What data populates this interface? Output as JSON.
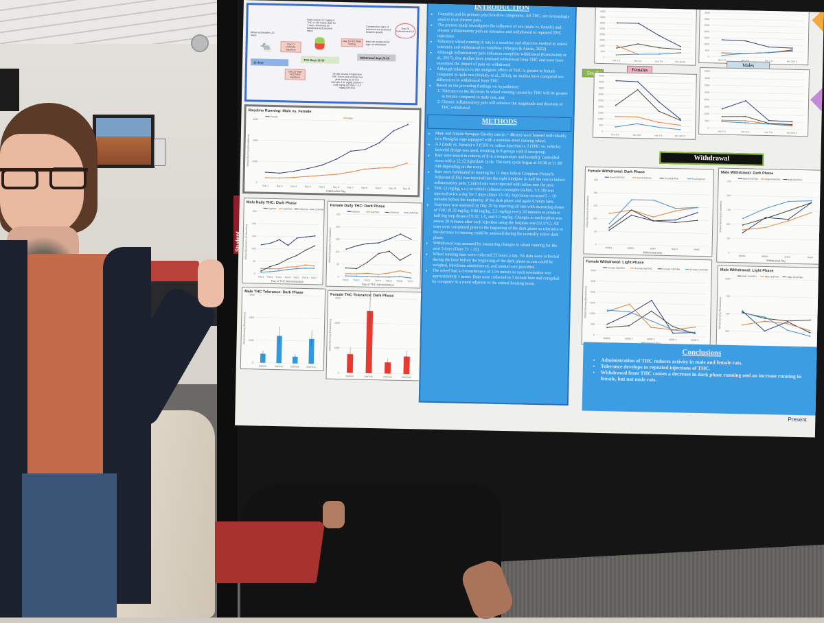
{
  "colors": {
    "intro_blue": "#3c9de3",
    "navy": "#2f3d7a",
    "orange": "#e8803a",
    "darkgreen": "#3f4a3a",
    "lightblue": "#4a8fd0",
    "bar_blue": "#3399dd",
    "bar_red": "#e83a30"
  },
  "sign": {
    "text": "Student"
  },
  "flowchart": {
    "acclimation": "Wheel acclimation (13 days)",
    "day11": "Day 11 CFA/SAL injections",
    "day13": "Day 13 Start THC/VEH injections",
    "days13": "13 days",
    "thc_days": "THC Days 13-19",
    "thc_note": "Rats receive 3.2 mg/kg of THC or VEH twice daily for 7 days. Monitored for behavioral and physical effect",
    "day19": "Day 19 Hot Plate testing",
    "hotplate_note": "All rats receive Progressive THC Doses and undergo hot plate testing at 20 min intervals 0.32 mg/kg (20min) + 0.68 mg/kg (20 min) + 2.2 mg/kg (20 min)",
    "withdrawal_days": "Withdrawal days 20-25",
    "compare_note": "Comparative signs of tolerance are assessed between groups",
    "monitor_note": "Rats are monitored for signs of withdrawal",
    "day26": "Day 26 Euthanasia & LP"
  },
  "introduction": {
    "title": "INTRODUCTION",
    "bullets": [
      "Cannabis and its primary psychoactive component, Δ9-THC, are increasingly used to treat chronic pain.",
      "The present study investigates the influence of sex (male vs. female) and chronic inflammatory pain on tolerance and withdrawal to repeated THC injections",
      "Voluntary wheel running in rats is a sensitive and objective method to assess tolerance and withdrawal to morphine (Morgan & Ataras, 2022)",
      "Although inflammatory pain enhances morphine withdrawal (Kandasamy et al., 2017), few studies have assessed withdrawal from THC and none have examined the impact of pain on withdrawal",
      "Although tolerance to the analgesic effect of THC is greater in female compared to male rats (Wakley et al., 2014), no studies have compared sex differences in withdrawal from THC",
      "Based on the preceding findings we hypothesize:"
    ],
    "hypotheses": [
      "Tolerance to the decrease in wheel running caused by THC will be greater in female compared to male rats, and",
      "Chronic inflammatory pain will enhance the magnitude and duration of THC withdrawal"
    ]
  },
  "methods": {
    "title": "METHODS",
    "bullets": [
      "Male and female Sprague-Dawley rats (n = 48/sex) were housed individually in a Plexiglas cage equipped with a stainless-steel running wheel.",
      "A 2 (male vs. female) x 2 (CFA vs. saline injection) x 2 (THC vs. vehicle) factorial design was used, resulting in 8 groups with 8 rats/group.",
      "Rats were tested in cohorts of 8 in a temperature and humidity controlled room with a 12:12 light/dark cycle. The dark cycle began at 10:30 or 11:00 AM depending on the room.",
      "Rats were habituated to running for 11 days before Complete Freund's Adjuvant (CFA) was injected into the right hindpaw in half the rats to induce inflammatory pain. Control rats were injected with saline into the paw.",
      "THC (3 mg/kg, s.c.) or vehicle (ethanol:cremophor:saline, 1:1:18) was injected twice a day for 7 days (Days 13-19). Injections occurred 5 – 10 minutes before the beginning of the dark phase and again 6 hours later.",
      "Tolerance was assessed on Day 20 by injecting all rats with increasing doses of THC (0.32 mg/kg, 0.68 mg/kg, 2.2 mg/kg) every 20 minutes to produce half-log step doses of 0.32, 1.0, and 3.2 mg/kg. Changes in nociception was assess 20 minutes after each injection using the hotplate test (52.5°C). All tests were completed prior to the beginning of the dark phase so tolerance to the decrease in running could be assessed during the normally active dark phase.",
      "Withdrawal was assessed by measuring changes in wheel running for the next 5 days (Days 21 – 25).",
      "Wheel running data were collected 23 hours a day. No data were collected during the hour before the beginning of the dark phase so rats could be weighed, injections administered, and animal care provided.",
      "The wheel had a circumference of 1.04 meters so each revolution was approximately 1 meter. Data were collected in 5 minute bins and compiled by computer in a room adjacent to the animal housing room."
    ]
  },
  "labels": {
    "day7": "Day 7",
    "females": "Females",
    "males": "Males",
    "withdrawal": "Withdrawal",
    "presented": "Present"
  },
  "conclusions": {
    "title": "Conclusions",
    "bullets": [
      "Administration of THC reduces activity in male and female rats.",
      "Tolerance develops to repeated injections of THC.",
      "Withdrawal from THC causes a decrease in dark phase running and an increase running in female, but not male rats."
    ]
  },
  "chart_data": [
    {
      "type": "line",
      "title": "Baseline Running: Male vs. Female",
      "xlabel": "Habituation Day",
      "ylabel": "Wheel Running (Revolutions)",
      "ylim": [
        0,
        6000
      ],
      "yticks": [
        0,
        2000,
        4000,
        6000
      ],
      "categories": [
        "Day 1",
        "Day 2",
        "Day 3",
        "Day 4",
        "Day 5",
        "Day 6",
        "Day 7",
        "Day 8",
        "Day 9",
        "Day 10",
        "Day 11"
      ],
      "series": [
        {
          "name": "Female",
          "color": "#2f3d7a",
          "values": [
            960,
            900,
            1110,
            1400,
            1760,
            2350,
            3130,
            3310,
            3980,
            5150,
            5770
          ]
        },
        {
          "name": "Male",
          "color": "#e8803a",
          "values": [
            440,
            440,
            520,
            650,
            780,
            900,
            1140,
            1450,
            1580,
            1680,
            2100
          ]
        }
      ]
    },
    {
      "type": "line",
      "title": "Male Daily THC: Dark Phase",
      "xlabel": "Day of THC Administration",
      "ylabel": "Wheel Revolutions (% Baseline)",
      "ylim": [
        0,
        250
      ],
      "yticks": [
        0,
        50,
        100,
        150,
        200,
        250
      ],
      "categories": [
        "THC1",
        "THC2",
        "THC3",
        "THC4",
        "THC5",
        "THC6",
        "THC7"
      ],
      "series": [
        {
          "name": "Sal/Veh",
          "color": "#2f3d7a",
          "values": [
            115,
            122,
            137,
            115,
            145,
            150,
            155
          ]
        },
        {
          "name": "Sal/THC",
          "color": "#e8803a",
          "values": [
            20,
            20,
            20,
            28,
            30,
            38,
            35
          ]
        },
        {
          "name": "CFA/Veh",
          "color": "#3f4a3a",
          "values": [
            10,
            28,
            40,
            60,
            75,
            97,
            115
          ]
        },
        {
          "name": "CFA/THC",
          "color": "#4a8fd0",
          "values": [
            5,
            8,
            12,
            18,
            22,
            25,
            25
          ]
        }
      ]
    },
    {
      "type": "line",
      "title": "Female Daily THC: Dark Phase",
      "xlabel": "Day of THC Administration",
      "ylabel": "Wheel Revolutions (% Baseline)",
      "ylim": [
        0,
        250
      ],
      "yticks": [
        0,
        50,
        100,
        150,
        200,
        250
      ],
      "categories": [
        "THC1",
        "THC2",
        "THC3",
        "THC4",
        "THC5",
        "THC6",
        "THC7"
      ],
      "series": [
        {
          "name": "Sal/Veh",
          "color": "#2f3d7a",
          "values": [
            110,
            125,
            135,
            138,
            155,
            175,
            155
          ]
        },
        {
          "name": "Sal/THC",
          "color": "#e8803a",
          "values": [
            12,
            12,
            15,
            12,
            18,
            28,
            20
          ]
        },
        {
          "name": "CFA/Veh",
          "color": "#3f4a3a",
          "values": [
            35,
            33,
            60,
            95,
            105,
            70,
            95
          ]
        },
        {
          "name": "CFA/THC",
          "color": "#4a8fd0",
          "values": [
            3,
            3,
            2,
            2,
            2,
            5,
            0
          ]
        }
      ]
    },
    {
      "type": "bar",
      "title": "Male THC Tolerance: Dark Phase",
      "ylabel": "Wheel Running (Revolutions)",
      "ylim": [
        0,
        3000
      ],
      "yticks": [
        0,
        1000,
        2000,
        3000
      ],
      "categories": [
        "Sal/Veh",
        "Sal/THC",
        "CFA/Veh",
        "CFA/THC"
      ],
      "color": "#3399dd",
      "values": [
        400,
        1200,
        300,
        1100
      ]
    },
    {
      "type": "bar",
      "title": "Female THC Tolerance: Dark Phase",
      "ylabel": "Wheel Running (Revolutions)",
      "ylim": [
        0,
        3000
      ],
      "yticks": [
        0,
        1000,
        2000,
        3000
      ],
      "categories": [
        "Sal/Veh",
        "Sal/THC",
        "CFA/Veh",
        "CFA/THC"
      ],
      "color": "#e83a30",
      "values": [
        750,
        2500,
        450,
        700
      ]
    },
    {
      "type": "line",
      "title": "",
      "ylim": [
        0,
        4500
      ],
      "yticks": [
        0,
        500,
        1000,
        1500,
        2000,
        2500,
        3000,
        3500,
        4000,
        4500
      ],
      "categories": [
        "Hrs 1-3",
        "Hrs 4-6",
        "Hrs 7-9",
        "Hrs 10-12"
      ],
      "series": [
        {
          "color": "#2f3d7a",
          "values": [
            3000,
            3000,
            1950,
            1050
          ]
        },
        {
          "color": "#3f4a3a",
          "values": [
            800,
            1200,
            900,
            800
          ]
        },
        {
          "color": "#e8803a",
          "values": [
            1000,
            300,
            350,
            500
          ]
        },
        {
          "color": "#4a8fd0",
          "values": [
            200,
            300,
            350,
            500
          ]
        }
      ]
    },
    {
      "type": "line",
      "title": "",
      "ylim": [
        0,
        4000
      ],
      "yticks": [
        0,
        500,
        1000,
        1500,
        2000,
        2500,
        3000,
        3500,
        4000
      ],
      "categories": [
        "Hrs 1-3",
        "Hrs 4-6",
        "Hrs 7-9",
        "Hrs 10-12"
      ],
      "series": [
        {
          "color": "#2f3d7a",
          "values": [
            1350,
            1300,
            850,
            800
          ]
        },
        {
          "color": "#3f4a3a",
          "values": [
            300,
            300,
            400,
            650
          ]
        },
        {
          "color": "#e8803a",
          "values": [
            300,
            300,
            400,
            600
          ]
        },
        {
          "color": "#4a8fd0",
          "values": [
            100,
            300,
            400,
            550
          ]
        }
      ]
    },
    {
      "type": "line",
      "title": "",
      "ylim": [
        0,
        4500
      ],
      "yticks": [
        0,
        500,
        1000,
        1500,
        2000,
        2500,
        3000,
        3500,
        4000,
        4500
      ],
      "categories": [
        "Hrs 1-3",
        "Hrs 4-6",
        "Hrs 7-9",
        "Hrs 10-12"
      ],
      "series": [
        {
          "color": "#2f3d7a",
          "values": [
            4100,
            4050,
            2450,
            1100
          ]
        },
        {
          "color": "#3f4a3a",
          "values": [
            2100,
            3400,
            1700,
            1000
          ]
        },
        {
          "color": "#e8803a",
          "values": [
            1200,
            1200,
            800,
            600
          ]
        },
        {
          "color": "#4a8fd0",
          "values": [
            350,
            650,
            400,
            250
          ]
        }
      ]
    },
    {
      "type": "line",
      "title": "",
      "ylim": [
        0,
        4000
      ],
      "yticks": [
        0,
        500,
        1000,
        1500,
        2000,
        2500,
        3000,
        3500,
        4000
      ],
      "categories": [
        "Hrs 1-3",
        "Hrs 4-6",
        "Hrs 7-9",
        "Hrs 10-12"
      ],
      "series": [
        {
          "color": "#2f3d7a",
          "values": [
            1350,
            1950,
            600,
            550
          ]
        },
        {
          "color": "#3f4a3a",
          "values": [
            800,
            850,
            400,
            350
          ]
        },
        {
          "color": "#e8803a",
          "values": [
            550,
            550,
            350,
            300
          ]
        },
        {
          "color": "#4a8fd0",
          "values": [
            450,
            400,
            350,
            250
          ]
        }
      ]
    },
    {
      "type": "line",
      "title": "Female Withdrawal: Dark Phase",
      "xlabel": "Withdrawal Day",
      "ylabel": "Wheel Running (% Baseline)",
      "ylim": [
        0,
        250
      ],
      "yticks": [
        0,
        50,
        100,
        150,
        200,
        250
      ],
      "categories": [
        "WDR1",
        "WDR2",
        "Wdr3",
        "Wdr 4",
        "Wdr5"
      ],
      "series": [
        {
          "name": "Fem/CFA/THC",
          "color": "#2f3d7a",
          "values": [
            55,
            115,
            95,
            100,
            130
          ]
        },
        {
          "name": "Fem/CFA/Veh",
          "color": "#e8803a",
          "values": [
            120,
            135,
            110,
            135,
            150
          ]
        },
        {
          "name": "Fem/Sal/THC",
          "color": "#3f4a3a",
          "values": [
            65,
            135,
            95,
            90,
            100
          ]
        },
        {
          "name": "Fem/Sal/Veh",
          "color": "#4a8fd0",
          "values": [
            80,
            175,
            175,
            145,
            150
          ]
        }
      ]
    },
    {
      "type": "line",
      "title": "Male Withdrawal: Dark Phase",
      "xlabel": "Withdrawal Day",
      "ylabel": "Wheel Running (% Baseline)",
      "ylim": [
        0,
        250
      ],
      "yticks": [
        0,
        50,
        100,
        150,
        200,
        250
      ],
      "categories": [
        "WDR1",
        "WDR2",
        "Wdr3",
        "Wdr4"
      ],
      "series": [
        {
          "name": "Male/CFA/THC",
          "color": "#2f3d7a",
          "values": [
            70,
            125,
            120,
            180
          ]
        },
        {
          "name": "Male/CFA/Veh",
          "color": "#e8803a",
          "values": [
            80,
            90,
            115,
            145
          ]
        },
        {
          "name": "Male/Sal/THC",
          "color": "#3f4a3a",
          "values": [
            97,
            122,
            150,
            180
          ]
        },
        {
          "color": "#4a8fd0",
          "values": [
            120,
            157,
            183,
            187
          ]
        }
      ]
    },
    {
      "type": "line",
      "title": "Female Withdrawal: Light Phase",
      "xlabel": "Withdrawal Day",
      "ylabel": "Wheel Running (Revolutions)",
      "ylim": [
        0,
        3000
      ],
      "yticks": [
        0,
        500,
        1000,
        1500,
        2000,
        2500,
        3000
      ],
      "categories": [
        "WDR1",
        "WDR 2",
        "WDR 3",
        "WDR 4",
        "WDR 5"
      ],
      "series": [
        {
          "name": "Female Sal/VEH",
          "color": "#2f3d7a",
          "values": [
            500,
            1000,
            1650,
            150,
            200
          ]
        },
        {
          "name": "Female Sal/THC",
          "color": "#e8803a",
          "values": [
            1100,
            1450,
            400,
            300,
            450
          ]
        },
        {
          "name": "Female Cfa/VEH",
          "color": "#3f4a3a",
          "values": [
            350,
            450,
            1150,
            450,
            150
          ]
        },
        {
          "name": "Female CFA/THC",
          "color": "#4a8fd0",
          "values": [
            1150,
            1100,
            700,
            300,
            200
          ]
        }
      ]
    },
    {
      "type": "line",
      "title": "Male Withdrawal: Light Phase",
      "xlabel": "Withdrawal Day",
      "ylabel": "Wheel Running (Revolutions)",
      "ylim": [
        0,
        1000
      ],
      "yticks": [
        0,
        250,
        500,
        750,
        1000
      ],
      "categories": [
        "WDR1",
        "WDR 2",
        "WDR 3",
        "WDR 4"
      ],
      "series": [
        {
          "name": "Male Sal/VEH",
          "color": "#2f3d7a",
          "values": [
            540,
            260,
            400,
            250
          ]
        },
        {
          "name": "Male Sal/THC",
          "color": "#e8803a",
          "values": [
            340,
            400,
            370,
            280
          ]
        },
        {
          "name": "Male CFA/VEH",
          "color": "#3f4a3a",
          "values": [
            520,
            440,
            410,
            430
          ]
        },
        {
          "color": "#4a8fd0",
          "values": [
            510,
            460,
            280,
            200
          ]
        }
      ]
    }
  ]
}
